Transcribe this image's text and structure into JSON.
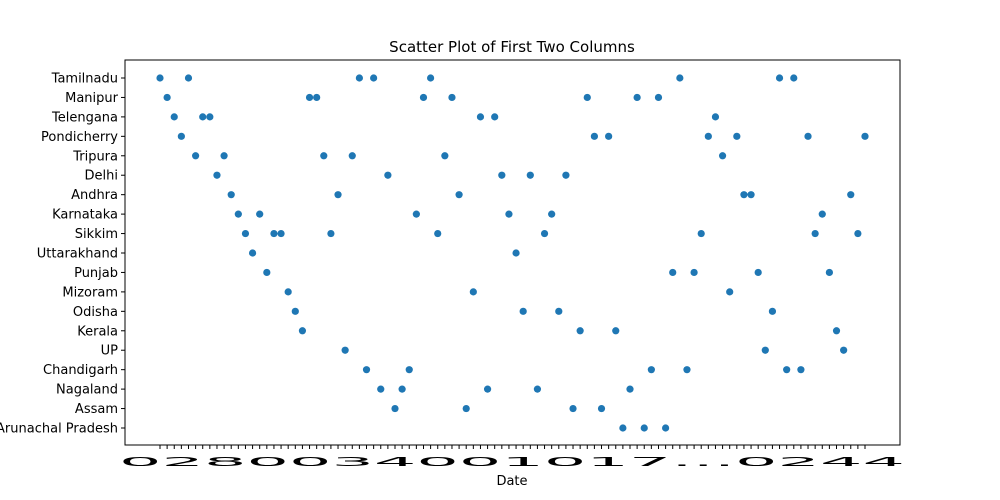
{
  "chart_data": {
    "type": "scatter",
    "title": "Scatter Plot of First Two Columns",
    "xlabel": "Date",
    "ylabel": "",
    "x_tick_label_overlap": "0280034001017...0244",
    "categories": [
      "Arunachal Pradesh",
      "Assam",
      "Nagaland",
      "Chandigarh",
      "UP",
      "Kerala",
      "Odisha",
      "Mizoram",
      "Punjab",
      "Uttarakhand",
      "Sikkim",
      "Karnataka",
      "Andhra",
      "Delhi",
      "Tripura",
      "Pondicherry",
      "Telengana",
      "Manipur",
      "Tamilnadu"
    ],
    "x_count": 100,
    "points": [
      {
        "x": 0,
        "y": "Tamilnadu"
      },
      {
        "x": 1,
        "y": "Manipur"
      },
      {
        "x": 2,
        "y": "Telengana"
      },
      {
        "x": 3,
        "y": "Pondicherry"
      },
      {
        "x": 4,
        "y": "Tamilnadu"
      },
      {
        "x": 5,
        "y": "Tripura"
      },
      {
        "x": 6,
        "y": "Telengana"
      },
      {
        "x": 7,
        "y": "Telengana"
      },
      {
        "x": 8,
        "y": "Delhi"
      },
      {
        "x": 9,
        "y": "Tripura"
      },
      {
        "x": 10,
        "y": "Andhra"
      },
      {
        "x": 11,
        "y": "Karnataka"
      },
      {
        "x": 12,
        "y": "Sikkim"
      },
      {
        "x": 13,
        "y": "Uttarakhand"
      },
      {
        "x": 14,
        "y": "Karnataka"
      },
      {
        "x": 15,
        "y": "Punjab"
      },
      {
        "x": 16,
        "y": "Sikkim"
      },
      {
        "x": 17,
        "y": "Sikkim"
      },
      {
        "x": 18,
        "y": "Mizoram"
      },
      {
        "x": 19,
        "y": "Odisha"
      },
      {
        "x": 20,
        "y": "Kerala"
      },
      {
        "x": 21,
        "y": "Manipur"
      },
      {
        "x": 22,
        "y": "Manipur"
      },
      {
        "x": 23,
        "y": "Tripura"
      },
      {
        "x": 24,
        "y": "Sikkim"
      },
      {
        "x": 25,
        "y": "Andhra"
      },
      {
        "x": 26,
        "y": "UP"
      },
      {
        "x": 27,
        "y": "Tripura"
      },
      {
        "x": 28,
        "y": "Tamilnadu"
      },
      {
        "x": 29,
        "y": "Chandigarh"
      },
      {
        "x": 30,
        "y": "Tamilnadu"
      },
      {
        "x": 31,
        "y": "Nagaland"
      },
      {
        "x": 32,
        "y": "Delhi"
      },
      {
        "x": 33,
        "y": "Assam"
      },
      {
        "x": 34,
        "y": "Nagaland"
      },
      {
        "x": 35,
        "y": "Chandigarh"
      },
      {
        "x": 36,
        "y": "Karnataka"
      },
      {
        "x": 37,
        "y": "Manipur"
      },
      {
        "x": 38,
        "y": "Tamilnadu"
      },
      {
        "x": 39,
        "y": "Sikkim"
      },
      {
        "x": 40,
        "y": "Tripura"
      },
      {
        "x": 41,
        "y": "Manipur"
      },
      {
        "x": 42,
        "y": "Andhra"
      },
      {
        "x": 43,
        "y": "Assam"
      },
      {
        "x": 44,
        "y": "Mizoram"
      },
      {
        "x": 45,
        "y": "Telengana"
      },
      {
        "x": 46,
        "y": "Nagaland"
      },
      {
        "x": 47,
        "y": "Telengana"
      },
      {
        "x": 48,
        "y": "Delhi"
      },
      {
        "x": 49,
        "y": "Karnataka"
      },
      {
        "x": 50,
        "y": "Uttarakhand"
      },
      {
        "x": 51,
        "y": "Odisha"
      },
      {
        "x": 52,
        "y": "Delhi"
      },
      {
        "x": 53,
        "y": "Nagaland"
      },
      {
        "x": 54,
        "y": "Sikkim"
      },
      {
        "x": 55,
        "y": "Karnataka"
      },
      {
        "x": 56,
        "y": "Odisha"
      },
      {
        "x": 57,
        "y": "Delhi"
      },
      {
        "x": 58,
        "y": "Assam"
      },
      {
        "x": 59,
        "y": "Kerala"
      },
      {
        "x": 60,
        "y": "Manipur"
      },
      {
        "x": 61,
        "y": "Pondicherry"
      },
      {
        "x": 62,
        "y": "Assam"
      },
      {
        "x": 63,
        "y": "Pondicherry"
      },
      {
        "x": 64,
        "y": "Kerala"
      },
      {
        "x": 65,
        "y": "Arunachal Pradesh"
      },
      {
        "x": 66,
        "y": "Nagaland"
      },
      {
        "x": 67,
        "y": "Manipur"
      },
      {
        "x": 68,
        "y": "Arunachal Pradesh"
      },
      {
        "x": 69,
        "y": "Chandigarh"
      },
      {
        "x": 70,
        "y": "Manipur"
      },
      {
        "x": 71,
        "y": "Arunachal Pradesh"
      },
      {
        "x": 72,
        "y": "Punjab"
      },
      {
        "x": 73,
        "y": "Tamilnadu"
      },
      {
        "x": 74,
        "y": "Chandigarh"
      },
      {
        "x": 75,
        "y": "Punjab"
      },
      {
        "x": 76,
        "y": "Sikkim"
      },
      {
        "x": 77,
        "y": "Pondicherry"
      },
      {
        "x": 78,
        "y": "Telengana"
      },
      {
        "x": 79,
        "y": "Tripura"
      },
      {
        "x": 80,
        "y": "Mizoram"
      },
      {
        "x": 81,
        "y": "Pondicherry"
      },
      {
        "x": 82,
        "y": "Andhra"
      },
      {
        "x": 83,
        "y": "Andhra"
      },
      {
        "x": 84,
        "y": "Punjab"
      },
      {
        "x": 85,
        "y": "UP"
      },
      {
        "x": 86,
        "y": "Odisha"
      },
      {
        "x": 87,
        "y": "Tamilnadu"
      },
      {
        "x": 88,
        "y": "Chandigarh"
      },
      {
        "x": 89,
        "y": "Tamilnadu"
      },
      {
        "x": 90,
        "y": "Chandigarh"
      },
      {
        "x": 91,
        "y": "Pondicherry"
      },
      {
        "x": 92,
        "y": "Sikkim"
      },
      {
        "x": 93,
        "y": "Karnataka"
      },
      {
        "x": 94,
        "y": "Punjab"
      },
      {
        "x": 95,
        "y": "Kerala"
      },
      {
        "x": 96,
        "y": "UP"
      },
      {
        "x": 97,
        "y": "Andhra"
      },
      {
        "x": 98,
        "y": "Sikkim"
      },
      {
        "x": 99,
        "y": "Pondicherry"
      }
    ],
    "marker_color": "#1f77b4",
    "grid": false,
    "legend": "none"
  }
}
